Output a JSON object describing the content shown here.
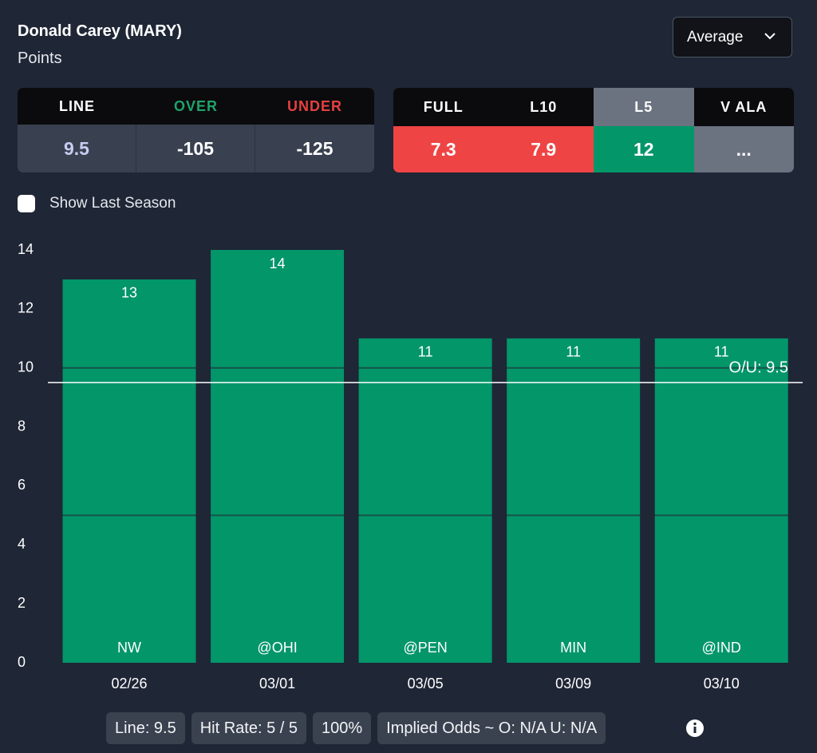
{
  "header": {
    "title": "Donald Carey (MARY)",
    "subtitle": "Points",
    "dropdown": "Average"
  },
  "odds_table": {
    "headers": [
      "LINE",
      "OVER",
      "UNDER"
    ],
    "values": [
      "9.5",
      "-105",
      "-125"
    ]
  },
  "averages_table": {
    "headers": [
      "FULL",
      "L10",
      "L5",
      "V ALA"
    ],
    "values": [
      "7.3",
      "7.9",
      "12",
      "..."
    ]
  },
  "checkbox_label": "Show Last Season",
  "chart_data": {
    "type": "bar",
    "categories": [
      "02/26",
      "03/01",
      "03/05",
      "03/09",
      "03/10"
    ],
    "opponents": [
      "NW",
      "@OHI",
      "@PEN",
      "MIN",
      "@IND"
    ],
    "values": [
      13,
      14,
      11,
      11,
      11
    ],
    "color": "#039669",
    "ylim": [
      0,
      14
    ],
    "yticks": [
      0,
      2,
      4,
      6,
      8,
      10,
      12,
      14
    ],
    "gridlines": [
      5,
      10
    ],
    "reference_line": {
      "value": 9.5,
      "label": "O/U: 9.5"
    }
  },
  "footer": {
    "pills": [
      "Line: 9.5",
      "Hit Rate: 5 / 5",
      "100%",
      "Implied Odds ~ O: N/A U: N/A"
    ]
  }
}
